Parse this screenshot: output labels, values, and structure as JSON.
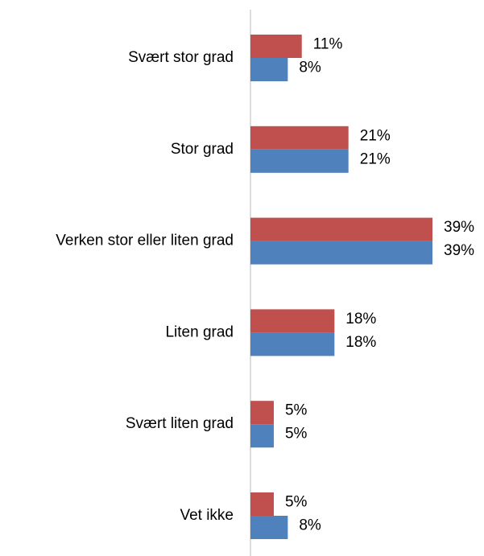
{
  "chart_data": {
    "type": "hbar",
    "categories": [
      "Svært stor grad",
      "Stor grad",
      "Verken stor eller liten grad",
      "Liten grad",
      "Svært liten grad",
      "Vet ikke"
    ],
    "series": [
      {
        "color": "#c0504d",
        "values": [
          11,
          21,
          39,
          18,
          5,
          5
        ],
        "value_labels": [
          "11%",
          "21%",
          "39%",
          "18%",
          "5%",
          "5%"
        ]
      },
      {
        "color": "#4f81bd",
        "values": [
          8,
          21,
          39,
          18,
          5,
          8
        ],
        "value_labels": [
          "8%",
          "21%",
          "39%",
          "18%",
          "5%",
          "8%"
        ]
      }
    ],
    "xlim": [
      0,
      39
    ]
  }
}
